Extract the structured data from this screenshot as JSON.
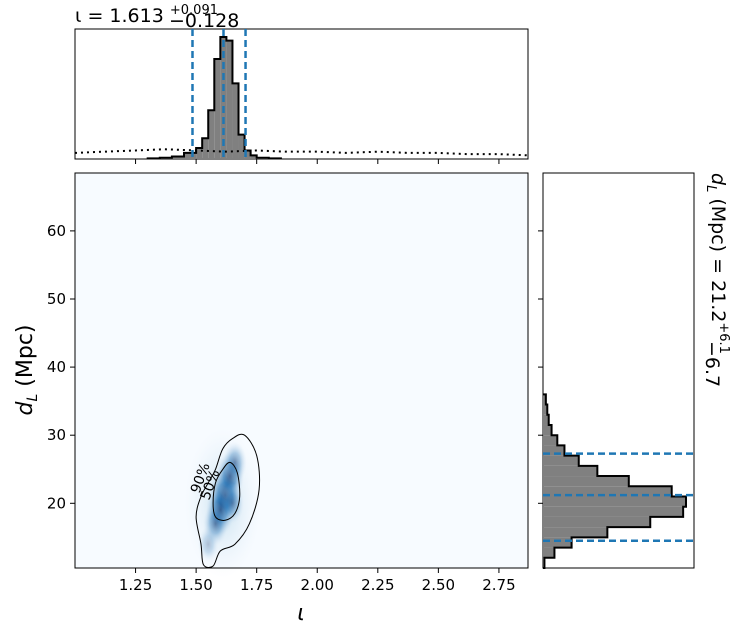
{
  "chart_data": {
    "type": "heatmap",
    "joint": {
      "x": [
        1.62,
        1.6,
        1.64,
        1.58,
        1.66,
        1.55,
        1.65
      ],
      "y": [
        21.2,
        19,
        24,
        17,
        26,
        14,
        20
      ],
      "weight": [
        1.0,
        0.8,
        0.75,
        0.55,
        0.5,
        0.3,
        0.45
      ],
      "xlabel": "ι",
      "ylabel": "d_L (Mpc)",
      "xlim": [
        1.0,
        2.87
      ],
      "ylim": [
        10.5,
        68.5
      ],
      "xticks": [
        "1.25",
        "1.50",
        "1.75",
        "2.00",
        "2.25",
        "2.50",
        "2.75"
      ],
      "xtick_values": [
        1.25,
        1.5,
        1.75,
        2.0,
        2.25,
        2.5,
        2.75
      ],
      "yticks": [
        "20",
        "30",
        "40",
        "50",
        "60"
      ],
      "ytick_values": [
        20,
        30,
        40,
        50,
        60
      ],
      "contour_labels": [
        "90%",
        "50%"
      ],
      "colormap": "Blues"
    },
    "iota_hist": {
      "title_main": "ι = 1.613",
      "title_sup": "+0.091",
      "title_sub": "−0.128",
      "bin_edges": [
        1.3,
        1.35,
        1.4,
        1.45,
        1.5,
        1.525,
        1.55,
        1.575,
        1.6,
        1.625,
        1.65,
        1.675,
        1.7,
        1.725,
        1.75,
        1.8,
        1.85
      ],
      "counts": [
        0.5,
        1,
        2,
        5,
        9,
        17,
        40,
        82,
        100,
        97,
        62,
        20,
        7,
        3,
        1,
        0.5
      ],
      "prior": [
        5,
        6,
        7,
        8,
        7,
        6,
        7,
        6,
        6,
        5,
        6,
        5,
        5,
        4,
        4,
        3
      ],
      "prior_x": [
        1.0,
        1.12,
        1.25,
        1.37,
        1.5,
        1.62,
        1.75,
        1.87,
        2.0,
        2.12,
        2.25,
        2.37,
        2.5,
        2.62,
        2.75,
        2.87
      ],
      "quantiles": [
        1.485,
        1.613,
        1.704
      ]
    },
    "dl_hist": {
      "title_main": "d_L (Mpc) = 21.2",
      "title_sup": "+6.1",
      "title_sub": "−6.7",
      "bin_edges": [
        10.5,
        12,
        13.5,
        15,
        16.5,
        18,
        19.5,
        21,
        22.5,
        24,
        25.5,
        27,
        28.5,
        30,
        31.5,
        33,
        34.5,
        36
      ],
      "counts": [
        1,
        8,
        20,
        45,
        75,
        98,
        100,
        90,
        60,
        38,
        25,
        15,
        10,
        6,
        4,
        3,
        2
      ],
      "quantiles": [
        14.5,
        21.2,
        27.3
      ]
    },
    "colors": {
      "hist_fill": "#808080",
      "quantile": "#1f77b4",
      "contour": "#000000"
    }
  }
}
